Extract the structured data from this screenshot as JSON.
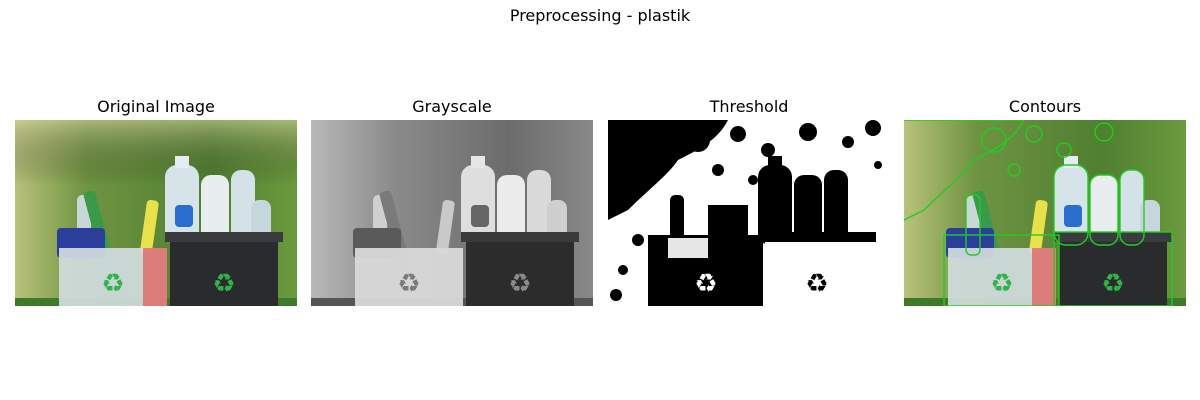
{
  "figure": {
    "title": "Preprocessing - plastik"
  },
  "panels": [
    {
      "title": "Original Image",
      "mode": "color"
    },
    {
      "title": "Grayscale",
      "mode": "grayscale"
    },
    {
      "title": "Threshold",
      "mode": "threshold"
    },
    {
      "title": "Contours",
      "mode": "contours",
      "contour_color": "#22cc22"
    }
  ],
  "colors": {
    "background": "#ffffff",
    "foliage": "#5f8a3a",
    "bin_left": "#cfd8dc",
    "bin_right": "#2e2f31",
    "recycle_symbol": "#2fb34a"
  }
}
